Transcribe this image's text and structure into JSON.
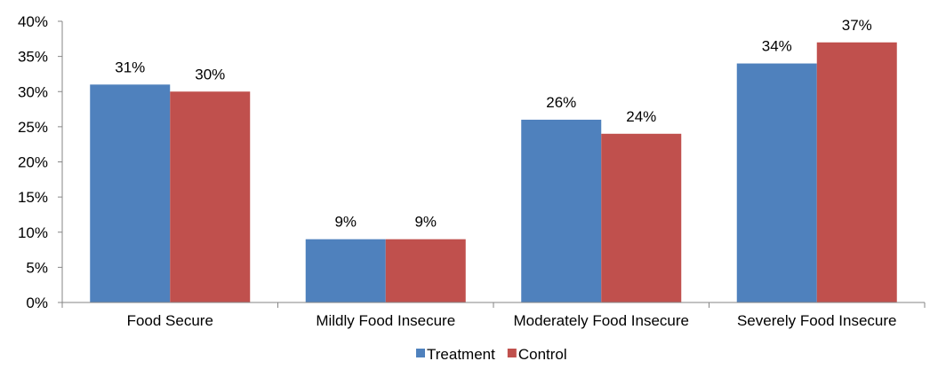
{
  "chart_data": {
    "type": "bar",
    "categories": [
      "Food Secure",
      "Mildly Food Insecure",
      "Moderately Food Insecure",
      "Severely Food Insecure"
    ],
    "series": [
      {
        "name": "Treatment",
        "values": [
          31,
          9,
          26,
          34
        ],
        "labels": [
          "31%",
          "9%",
          "26%",
          "34%"
        ],
        "color": "#4F81BD"
      },
      {
        "name": "Control",
        "values": [
          30,
          9,
          24,
          37
        ],
        "labels": [
          "30%",
          "9%",
          "24%",
          "37%"
        ],
        "color": "#C0504D"
      }
    ],
    "y_ticks": [
      0,
      5,
      10,
      15,
      20,
      25,
      30,
      35,
      40
    ],
    "y_tick_labels": [
      "0%",
      "5%",
      "10%",
      "15%",
      "20%",
      "25%",
      "30%",
      "35%",
      "40%"
    ],
    "ylim": [
      0,
      40
    ],
    "title": "",
    "xlabel": "",
    "ylabel": "",
    "legend_position": "bottom-center",
    "grid": false
  }
}
